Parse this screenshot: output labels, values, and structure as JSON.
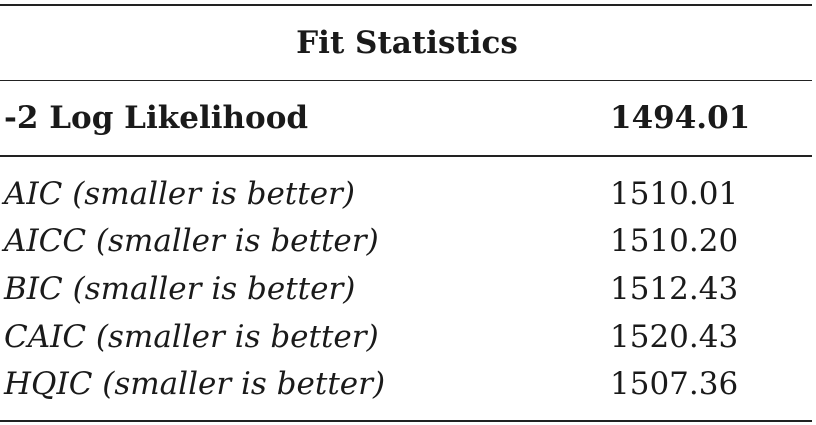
{
  "table": {
    "title": "Fit Statistics",
    "header": {
      "label": "-2 Log Likelihood",
      "value": "1494.01"
    },
    "rows": [
      {
        "label": "AIC (smaller is better)",
        "value": "1510.01"
      },
      {
        "label": "AICC (smaller is better)",
        "value": "1510.20"
      },
      {
        "label": "BIC (smaller is better)",
        "value": "1512.43"
      },
      {
        "label": "CAIC (smaller is better)",
        "value": "1520.43"
      },
      {
        "label": "HQIC (smaller is better)",
        "value": "1507.36"
      }
    ]
  }
}
